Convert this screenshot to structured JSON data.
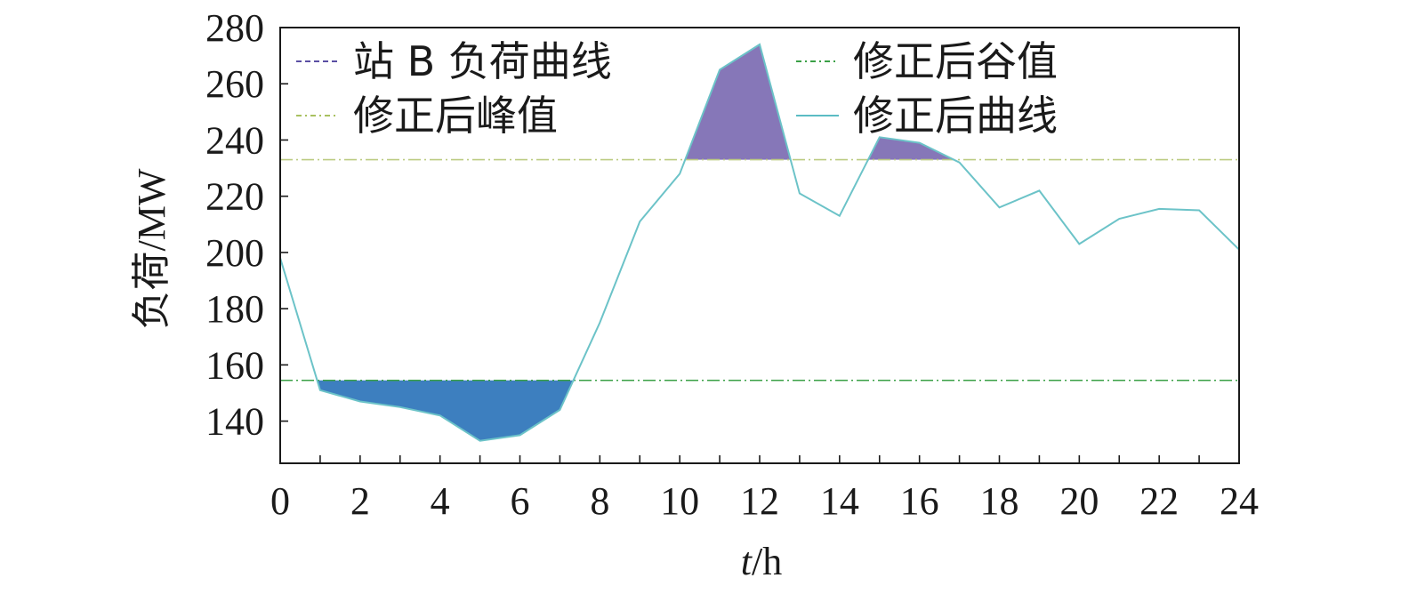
{
  "chart_data": {
    "type": "line",
    "xlabel_italic": "t",
    "xlabel_unit": "/h",
    "ylabel": "负荷/MW",
    "xlim": [
      0,
      24
    ],
    "ylim": [
      125,
      280
    ],
    "x_ticks": [
      0,
      2,
      4,
      6,
      8,
      10,
      12,
      14,
      16,
      18,
      20,
      22,
      24
    ],
    "y_ticks": [
      140,
      160,
      180,
      200,
      220,
      240,
      260,
      280
    ],
    "grid": false,
    "legend_position": "top",
    "legend": [
      {
        "key": "original",
        "label": "站 B 负荷曲线",
        "style": "dashed",
        "color": "#5a4fa3"
      },
      {
        "key": "valley",
        "label": "修正后谷值",
        "style": "dash-dot",
        "color": "#3aa046"
      },
      {
        "key": "peak",
        "label": "修正后峰值",
        "style": "dash-dot",
        "color": "#a8c060"
      },
      {
        "key": "corrected",
        "label": "修正后曲线",
        "style": "solid",
        "color": "#5bbcc4"
      }
    ],
    "peak_value": 233,
    "valley_value": 154.5,
    "colors": {
      "curve": "#6cc3c8",
      "peak_fill": "#8677b8",
      "valley_fill": "#3d7fbf",
      "peak_line": "#bccb82",
      "valley_line": "#3aa046",
      "axis": "#1a1a1a"
    },
    "series": [
      {
        "name": "站 B 负荷曲线",
        "x": [
          0,
          1,
          2,
          3,
          4,
          5,
          6,
          7,
          8,
          9,
          10,
          11,
          12,
          13,
          14,
          15,
          16,
          17,
          18,
          19,
          20,
          21,
          22,
          23,
          24
        ],
        "values": [
          198,
          151,
          147,
          145,
          142,
          133,
          135,
          144,
          175,
          211,
          228,
          265,
          274,
          221,
          213,
          241,
          239,
          232,
          216,
          222,
          203,
          212,
          215.5,
          215,
          201
        ]
      }
    ]
  }
}
